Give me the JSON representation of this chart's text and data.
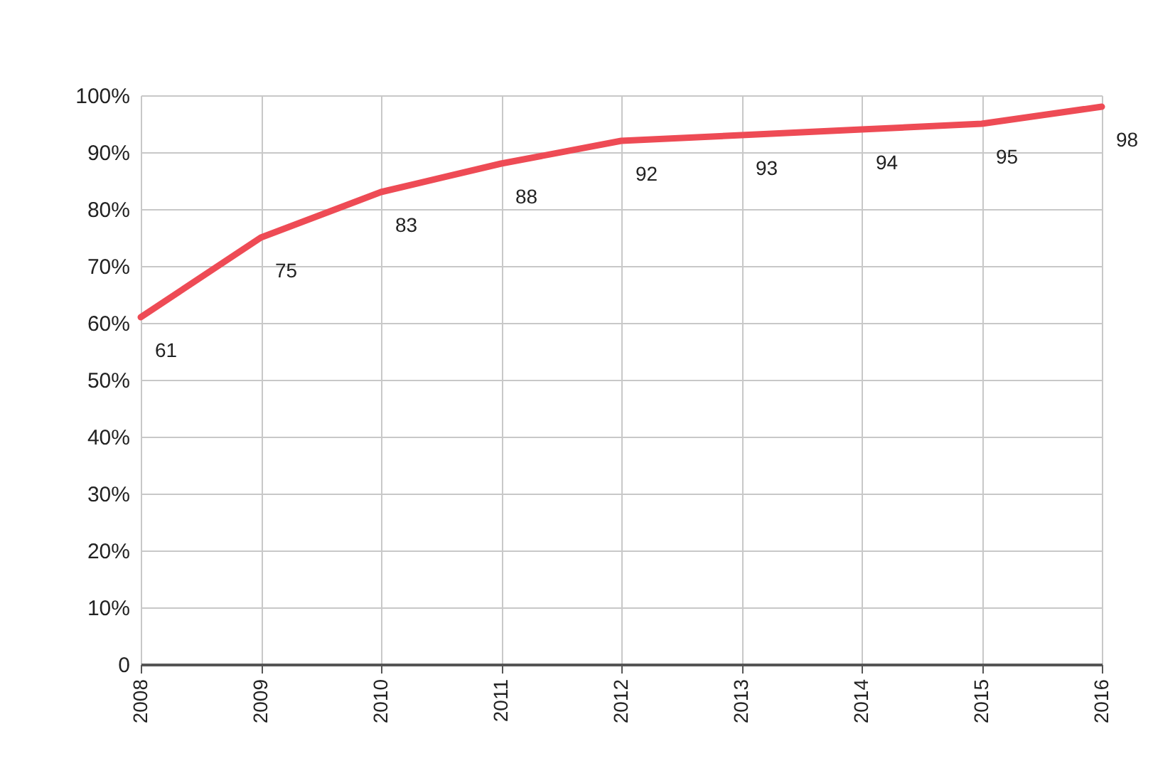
{
  "chart_data": {
    "type": "line",
    "categories": [
      "2008",
      "2009",
      "2010",
      "2011",
      "2012",
      "2013",
      "2014",
      "2015",
      "2016"
    ],
    "series": [
      {
        "color": "#ee4b55",
        "values": [
          61,
          75,
          83,
          88,
          92,
          93,
          94,
          95,
          98
        ]
      }
    ],
    "ylim": [
      0,
      100
    ],
    "yticks": [
      {
        "value": 0,
        "label": "0"
      },
      {
        "value": 10,
        "label": "10%"
      },
      {
        "value": 20,
        "label": "20%"
      },
      {
        "value": 30,
        "label": "30%"
      },
      {
        "value": 40,
        "label": "40%"
      },
      {
        "value": 50,
        "label": "50%"
      },
      {
        "value": 60,
        "label": "60%"
      },
      {
        "value": 70,
        "label": "70%"
      },
      {
        "value": 80,
        "label": "80%"
      },
      {
        "value": 90,
        "label": "90%"
      },
      {
        "value": 100,
        "label": "100%"
      }
    ],
    "grid": true,
    "data_labels": true,
    "marker": "none",
    "line_style": "solid"
  }
}
